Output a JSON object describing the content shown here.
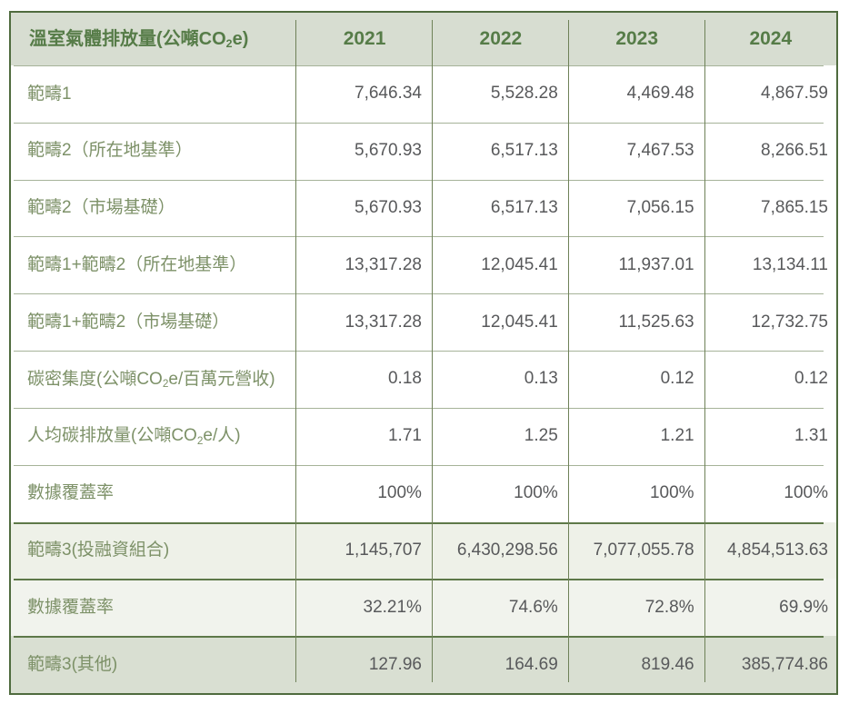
{
  "table": {
    "title": [
      {
        "t": "溫室氣體排放量(公噸CO"
      },
      {
        "t": "2",
        "sub": true
      },
      {
        "t": "e)"
      }
    ],
    "years": [
      "2021",
      "2022",
      "2023",
      "2024"
    ],
    "rows": [
      {
        "variant": "normal",
        "label": [
          {
            "t": "範疇1"
          }
        ],
        "values": [
          "7,646.34",
          "5,528.28",
          "4,469.48",
          "4,867.59"
        ]
      },
      {
        "variant": "normal",
        "label": [
          {
            "t": "範疇2（所在地基準）"
          }
        ],
        "values": [
          "5,670.93",
          "6,517.13",
          "7,467.53",
          "8,266.51"
        ]
      },
      {
        "variant": "normal",
        "label": [
          {
            "t": "範疇2（市場基礎）"
          }
        ],
        "values": [
          "5,670.93",
          "6,517.13",
          "7,056.15",
          "7,865.15"
        ]
      },
      {
        "variant": "normal",
        "label": [
          {
            "t": "範疇1+範疇2（所在地基準）"
          }
        ],
        "values": [
          "13,317.28",
          "12,045.41",
          "11,937.01",
          "13,134.11"
        ]
      },
      {
        "variant": "normal",
        "label": [
          {
            "t": "範疇1+範疇2（市場基礎）"
          }
        ],
        "values": [
          "13,317.28",
          "12,045.41",
          "11,525.63",
          "12,732.75"
        ]
      },
      {
        "variant": "normal",
        "label": [
          {
            "t": "碳密集度(公噸CO"
          },
          {
            "t": "2",
            "sub": true
          },
          {
            "t": "e/百萬元營收)"
          }
        ],
        "values": [
          "0.18",
          "0.13",
          "0.12",
          "0.12"
        ]
      },
      {
        "variant": "normal",
        "label": [
          {
            "t": "人均碳排放量(公噸CO"
          },
          {
            "t": "2",
            "sub": true
          },
          {
            "t": "e/人)"
          }
        ],
        "values": [
          "1.71",
          "1.25",
          "1.21",
          "1.31"
        ]
      },
      {
        "variant": "normal",
        "label": [
          {
            "t": "數據覆蓋率"
          }
        ],
        "values": [
          "100%",
          "100%",
          "100%",
          "100%"
        ]
      },
      {
        "variant": "scope3-light",
        "label": [
          {
            "t": "範疇3(投融資組合)"
          }
        ],
        "values": [
          "1,145,707",
          "6,430,298.56",
          "7,077,055.78",
          "4,854,513.63"
        ]
      },
      {
        "variant": "scope3-lighter",
        "label": [
          {
            "t": "數據覆蓋率"
          }
        ],
        "values": [
          "32.21%",
          "74.6%",
          "72.8%",
          "69.9%"
        ]
      },
      {
        "variant": "scope3-dark",
        "label": [
          {
            "t": "範疇3(其他)"
          }
        ],
        "values": [
          "127.96",
          "164.69",
          "819.46",
          "385,774.86"
        ]
      }
    ]
  },
  "colors": {
    "header_bg": "#d7ddd1",
    "header_text_green": "#567c48",
    "outer_border_green": "#4f6b3e",
    "column_line_green": "#6e8158",
    "row_line_light": "#a6b399",
    "row_line_dark": "#5d7848",
    "label_green": "#7d9168",
    "value_grey": "#58595b",
    "scope3_row_bg_light": "#eef1e8",
    "scope3_row_bg_lighter": "#f1f3ed",
    "scope3_row_bg_dark": "#d9dfd2"
  },
  "chart_data": {
    "type": "table",
    "title": "溫室氣體排放量(公噸CO2e)",
    "columns": [
      "2021",
      "2022",
      "2023",
      "2024"
    ],
    "rows": [
      {
        "label": "範疇1",
        "values": [
          7646.34,
          5528.28,
          4469.48,
          4867.59
        ]
      },
      {
        "label": "範疇2（所在地基準）",
        "values": [
          5670.93,
          6517.13,
          7467.53,
          8266.51
        ]
      },
      {
        "label": "範疇2（市場基礎）",
        "values": [
          5670.93,
          6517.13,
          7056.15,
          7865.15
        ]
      },
      {
        "label": "範疇1+範疇2（所在地基準）",
        "values": [
          13317.28,
          12045.41,
          11937.01,
          13134.11
        ]
      },
      {
        "label": "範疇1+範疇2（市場基礎）",
        "values": [
          13317.28,
          12045.41,
          11525.63,
          12732.75
        ]
      },
      {
        "label": "碳密集度(公噸CO2e/百萬元營收)",
        "values": [
          0.18,
          0.13,
          0.12,
          0.12
        ]
      },
      {
        "label": "人均碳排放量(公噸CO2e/人)",
        "values": [
          1.71,
          1.25,
          1.21,
          1.31
        ]
      },
      {
        "label": "數據覆蓋率",
        "values": [
          "100%",
          "100%",
          "100%",
          "100%"
        ]
      },
      {
        "label": "範疇3(投融資組合)",
        "values": [
          1145707,
          6430298.56,
          7077055.78,
          4854513.63
        ]
      },
      {
        "label": "數據覆蓋率",
        "values": [
          "32.21%",
          "74.6%",
          "72.8%",
          "69.9%"
        ]
      },
      {
        "label": "範疇3(其他)",
        "values": [
          127.96,
          164.69,
          819.46,
          385774.86
        ]
      }
    ]
  }
}
